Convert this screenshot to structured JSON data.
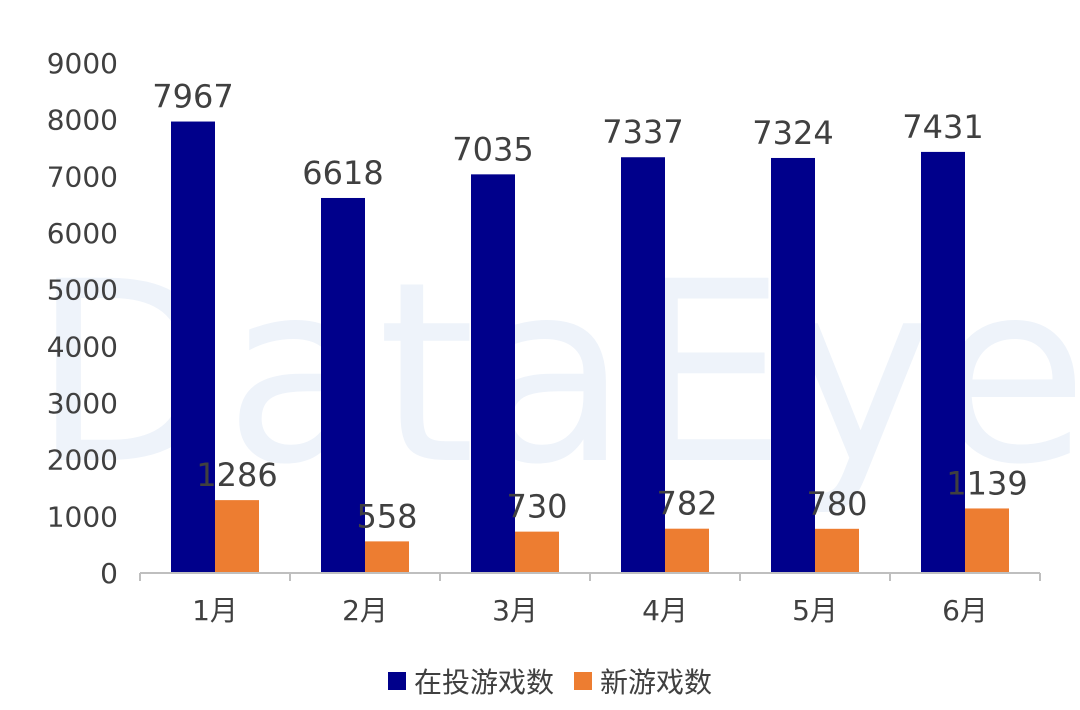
{
  "watermark": "DataEye",
  "colors": {
    "series_1": "#00008B",
    "series_2": "#ED7D31",
    "axis": "#BFBFBF",
    "text": "#404040"
  },
  "chart_data": {
    "type": "bar",
    "categories": [
      "1月",
      "2月",
      "3月",
      "4月",
      "5月",
      "6月"
    ],
    "series": [
      {
        "name": "在投游戏数",
        "values": [
          7967,
          6618,
          7035,
          7337,
          7324,
          7431
        ]
      },
      {
        "name": "新游戏数",
        "values": [
          1286,
          558,
          730,
          782,
          780,
          1139
        ]
      }
    ],
    "ylim": [
      0,
      9000
    ],
    "yticks": [
      0,
      1000,
      2000,
      3000,
      4000,
      5000,
      6000,
      7000,
      8000,
      9000
    ],
    "grid": false,
    "legend_position": "bottom",
    "data_labels": true
  }
}
